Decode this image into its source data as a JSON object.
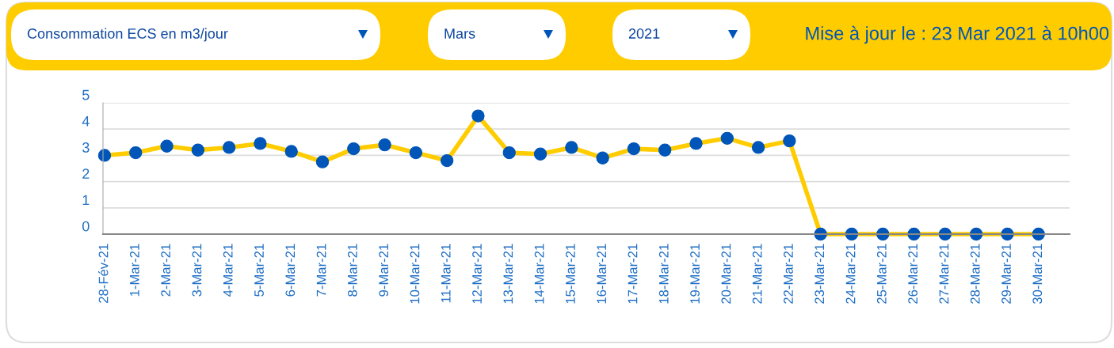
{
  "chart_data": {
    "type": "line",
    "annotations": [
      "Consommation ECS en m3/jour",
      "Mars",
      "2021",
      "Mise à jour le : 23 Mar 2021 à 10h00"
    ],
    "categories": [
      "28-Fév-21",
      "1-Mar-21",
      "2-Mar-21",
      "3-Mar-21",
      "4-Mar-21",
      "5-Mar-21",
      "6-Mar-21",
      "7-Mar-21",
      "8-Mar-21",
      "9-Mar-21",
      "10-Mar-21",
      "11-Mar-21",
      "12-Mar-21",
      "13-Mar-21",
      "14-Mar-21",
      "15-Mar-21",
      "16-Mar-21",
      "17-Mar-21",
      "18-Mar-21",
      "19-Mar-21",
      "20-Mar-21",
      "21-Mar-21",
      "22-Mar-21",
      "23-Mar-21",
      "24-Mar-21",
      "25-Mar-21",
      "26-Mar-21",
      "27-Mar-21",
      "28-Mar-21",
      "29-Mar-21",
      "30-Mar-21"
    ],
    "series": [
      {
        "color": "#ffcc00",
        "values": [
          3.0,
          3.1,
          3.35,
          3.2,
          3.3,
          3.45,
          3.15,
          2.75,
          3.25,
          3.4,
          3.1,
          2.8,
          4.5,
          3.1,
          3.05,
          3.3,
          2.9,
          3.25,
          3.2,
          3.45,
          3.65,
          3.3,
          3.55,
          0,
          0,
          0,
          0,
          0,
          0,
          0,
          0
        ]
      }
    ],
    "ylim": [
      0,
      5
    ],
    "yticks": [
      0,
      1,
      2,
      3,
      4,
      5
    ],
    "grid": "y",
    "marker": "circle",
    "line_style": "solid",
    "legend": false
  }
}
